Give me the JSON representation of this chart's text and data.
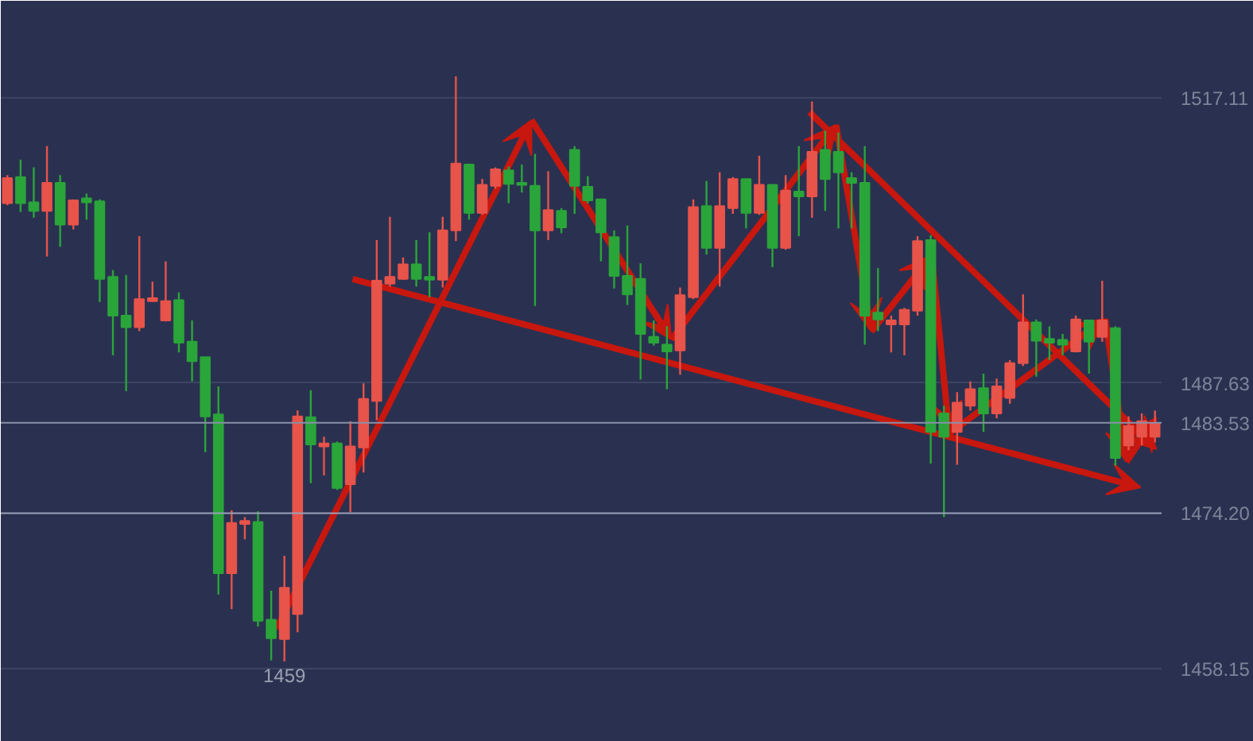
{
  "chart_data": {
    "type": "candlestick",
    "categories": [
      null,
      null,
      null,
      null,
      null,
      null,
      null,
      null,
      null,
      null,
      null,
      null,
      null,
      null,
      null,
      null,
      null,
      null,
      null,
      null,
      null,
      null,
      null,
      null,
      null,
      null,
      null,
      null,
      null,
      null,
      null,
      null,
      null,
      null,
      null,
      null,
      null,
      null,
      null,
      null,
      null,
      null,
      null,
      null,
      null,
      null,
      null,
      null,
      null,
      null,
      null,
      null,
      null,
      null,
      null,
      null,
      null,
      null,
      null,
      null,
      null,
      null,
      null,
      null,
      null,
      null,
      null,
      null,
      null,
      null,
      null,
      null,
      null,
      null,
      null,
      null,
      null,
      null,
      null,
      null,
      null,
      null,
      null,
      null,
      null,
      null,
      null,
      null
    ],
    "ohlc": [
      [
        1506.2,
        1509.1,
        1506.0,
        1508.8
      ],
      [
        1508.9,
        1510.7,
        1505.3,
        1506.2
      ],
      [
        1506.3,
        1509.9,
        1504.7,
        1505.4
      ],
      [
        1505.4,
        1512.1,
        1500.7,
        1508.3
      ],
      [
        1508.3,
        1509.1,
        1501.7,
        1504.0
      ],
      [
        1504.0,
        1506.6,
        1503.5,
        1506.5
      ],
      [
        1506.7,
        1507.2,
        1504.5,
        1506.3
      ],
      [
        1506.4,
        1506.6,
        1496.0,
        1498.4
      ],
      [
        1498.6,
        1499.3,
        1490.5,
        1494.6
      ],
      [
        1494.6,
        1498.8,
        1486.8,
        1493.4
      ],
      [
        1493.4,
        1502.8,
        1493.0,
        1496.3
      ],
      [
        1496.1,
        1498.1,
        1496.0,
        1496.4
      ],
      [
        1494.1,
        1500.2,
        1494.0,
        1496.1
      ],
      [
        1496.2,
        1497.0,
        1490.8,
        1491.8
      ],
      [
        1491.9,
        1494.1,
        1487.8,
        1489.9
      ],
      [
        1490.3,
        1490.3,
        1480.5,
        1484.2
      ],
      [
        1484.4,
        1487.3,
        1465.8,
        1468.0
      ],
      [
        1468.0,
        1474.5,
        1464.3,
        1473.2
      ],
      [
        1473.1,
        1473.8,
        1471.5,
        1473.4
      ],
      [
        1473.3,
        1474.4,
        1462.5,
        1463.1
      ],
      [
        1463.2,
        1466.2,
        1459.0,
        1461.3
      ],
      [
        1461.2,
        1469.8,
        1458.9,
        1466.5
      ],
      [
        1463.8,
        1484.8,
        1461.9,
        1484.2
      ],
      [
        1484.1,
        1486.9,
        1477.3,
        1481.3
      ],
      [
        1481.1,
        1482.1,
        1478.1,
        1481.4
      ],
      [
        1481.4,
        1481.6,
        1476.6,
        1476.8
      ],
      [
        1477.2,
        1483.7,
        1474.3,
        1481.1
      ],
      [
        1481.0,
        1487.6,
        1478.4,
        1486.0
      ],
      [
        1485.8,
        1502.4,
        1483.8,
        1498.2
      ],
      [
        1497.9,
        1504.8,
        1497.6,
        1498.6
      ],
      [
        1498.4,
        1500.6,
        1498.3,
        1499.9
      ],
      [
        1499.9,
        1502.4,
        1497.6,
        1498.4
      ],
      [
        1498.6,
        1503.2,
        1496.5,
        1498.3
      ],
      [
        1498.3,
        1504.8,
        1497.5,
        1503.4
      ],
      [
        1503.4,
        1519.3,
        1502.3,
        1510.3
      ],
      [
        1510.2,
        1510.3,
        1504.5,
        1505.2
      ],
      [
        1505.2,
        1508.7,
        1505.0,
        1508.1
      ],
      [
        1508.0,
        1509.9,
        1507.7,
        1509.7
      ],
      [
        1509.6,
        1510.0,
        1506.2,
        1508.2
      ],
      [
        1508.3,
        1510.2,
        1507.3,
        1508.1
      ],
      [
        1508.0,
        1511.3,
        1495.6,
        1503.4
      ],
      [
        1503.4,
        1509.5,
        1502.4,
        1505.5
      ],
      [
        1505.4,
        1505.7,
        1503.1,
        1503.7
      ],
      [
        1511.7,
        1512.1,
        1505.1,
        1508.0
      ],
      [
        1507.9,
        1509.0,
        1506.2,
        1506.5
      ],
      [
        1506.6,
        1506.6,
        1500.2,
        1503.2
      ],
      [
        1502.7,
        1503.4,
        1497.4,
        1498.7
      ],
      [
        1498.7,
        1503.9,
        1495.7,
        1496.8
      ],
      [
        1498.4,
        1500.0,
        1488.0,
        1492.7
      ],
      [
        1492.4,
        1494.1,
        1491.5,
        1491.8
      ],
      [
        1491.6,
        1493.5,
        1487.0,
        1490.9
      ],
      [
        1491.0,
        1497.5,
        1488.5,
        1496.7
      ],
      [
        1496.5,
        1506.6,
        1496.3,
        1505.8
      ],
      [
        1505.9,
        1508.5,
        1500.9,
        1501.6
      ],
      [
        1501.6,
        1509.4,
        1497.6,
        1505.9
      ],
      [
        1505.7,
        1508.9,
        1505.1,
        1508.7
      ],
      [
        1508.7,
        1508.7,
        1503.6,
        1505.2
      ],
      [
        1505.2,
        1511.1,
        1505.0,
        1508.1
      ],
      [
        1508.1,
        1508.1,
        1499.6,
        1501.6
      ],
      [
        1501.6,
        1509.1,
        1501.4,
        1507.5
      ],
      [
        1507.4,
        1512.1,
        1502.8,
        1506.9
      ],
      [
        1506.9,
        1516.7,
        1504.7,
        1511.5
      ],
      [
        1511.7,
        1513.7,
        1505.4,
        1508.7
      ],
      [
        1511.5,
        1513.5,
        1503.6,
        1509.4
      ],
      [
        1508.8,
        1509.4,
        1503.6,
        1508.3
      ],
      [
        1508.3,
        1512.1,
        1491.6,
        1494.6
      ],
      [
        1494.9,
        1499.5,
        1493.0,
        1494.2
      ],
      [
        1493.7,
        1494.6,
        1490.8,
        1494.1
      ],
      [
        1493.7,
        1495.4,
        1490.5,
        1495.2
      ],
      [
        1495.1,
        1502.8,
        1494.6,
        1502.3
      ],
      [
        1502.4,
        1502.9,
        1479.3,
        1482.6
      ],
      [
        1484.5,
        1485.3,
        1473.8,
        1482.1
      ],
      [
        1482.6,
        1486.7,
        1479.2,
        1485.6
      ],
      [
        1485.3,
        1487.8,
        1484.8,
        1487.0
      ],
      [
        1487.1,
        1488.6,
        1482.6,
        1484.5
      ],
      [
        1484.5,
        1488.1,
        1484.0,
        1487.3
      ],
      [
        1486.1,
        1490.0,
        1485.5,
        1489.7
      ],
      [
        1489.7,
        1496.8,
        1489.4,
        1493.9
      ],
      [
        1493.9,
        1494.2,
        1488.3,
        1492.0
      ],
      [
        1492.2,
        1493.5,
        1490.0,
        1491.8
      ],
      [
        1492.1,
        1492.7,
        1490.5,
        1491.6
      ],
      [
        1490.9,
        1494.6,
        1490.8,
        1494.2
      ],
      [
        1494.1,
        1494.1,
        1488.6,
        1491.9
      ],
      [
        1492.4,
        1498.2,
        1491.9,
        1494.1
      ],
      [
        1493.3,
        1493.5,
        1479.1,
        1479.9
      ],
      [
        1481.2,
        1484.2,
        1480.7,
        1483.2
      ],
      [
        1482.1,
        1484.5,
        1481.2,
        1483.7
      ],
      [
        1482.1,
        1484.8,
        1481.5,
        1483.5
      ]
    ],
    "colors": [
      "#e8534a",
      "#2aa53a",
      "#2aa53a",
      "#e8534a",
      "#2aa53a",
      "#e8534a",
      "#2aa53a",
      "#2aa53a",
      "#2aa53a",
      "#2aa53a",
      "#e8534a",
      "#e8534a",
      "#e8534a",
      "#2aa53a",
      "#2aa53a",
      "#2aa53a",
      "#2aa53a",
      "#e8534a",
      "#e8534a",
      "#2aa53a",
      "#2aa53a",
      "#e8534a",
      "#e8534a",
      "#2aa53a",
      "#e8534a",
      "#2aa53a",
      "#e8534a",
      "#e8534a",
      "#e8534a",
      "#e8534a",
      "#e8534a",
      "#2aa53a",
      "#2aa53a",
      "#e8534a",
      "#e8534a",
      "#2aa53a",
      "#e8534a",
      "#e8534a",
      "#2aa53a",
      "#2aa53a",
      "#2aa53a",
      "#e8534a",
      "#2aa53a",
      "#2aa53a",
      "#2aa53a",
      "#2aa53a",
      "#2aa53a",
      "#2aa53a",
      "#2aa53a",
      "#2aa53a",
      "#2aa53a",
      "#e8534a",
      "#e8534a",
      "#2aa53a",
      "#e8534a",
      "#e8534a",
      "#2aa53a",
      "#e8534a",
      "#2aa53a",
      "#e8534a",
      "#2aa53a",
      "#e8534a",
      "#2aa53a",
      "#2aa53a",
      "#2aa53a",
      "#2aa53a",
      "#2aa53a",
      "#e8534a",
      "#e8534a",
      "#e8534a",
      "#2aa53a",
      "#2aa53a",
      "#e8534a",
      "#e8534a",
      "#2aa53a",
      "#e8534a",
      "#e8534a",
      "#e8534a",
      "#2aa53a",
      "#2aa53a",
      "#2aa53a",
      "#e8534a",
      "#2aa53a",
      "#e8534a",
      "#2aa53a",
      "#e8534a",
      "#e8534a",
      "#e8534a"
    ],
    "ylim": [
      1450.6,
      1527.1
    ],
    "yticks": [
      1517.11,
      1487.63,
      1458.15
    ],
    "grid": "y",
    "ref_lines": [
      {
        "axis": "y",
        "value": 1483.53,
        "label": "1483.53",
        "color": "#8a90a8"
      },
      {
        "axis": "y",
        "value": 1474.2,
        "label": "1474.20",
        "color": "#9aa0b8"
      }
    ],
    "annotations": [
      "1459"
    ]
  }
}
